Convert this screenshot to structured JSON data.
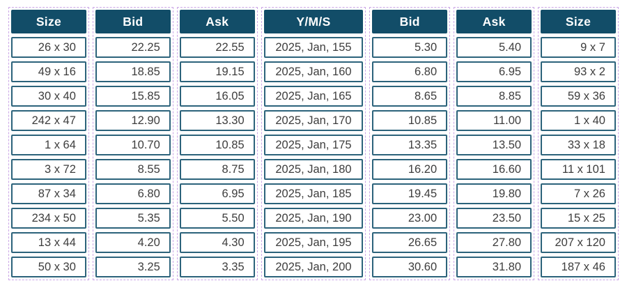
{
  "widget": {
    "name": "options-chain",
    "row_count": 10,
    "columns": [
      {
        "id": "size-left",
        "header": "Size",
        "align": "right",
        "wide": false,
        "values": [
          "26 x 30",
          "49 x 16",
          "30 x 40",
          "242 x 47",
          "1 x 64",
          "3 x 72",
          "87 x 34",
          "234 x 50",
          "13 x 44",
          "50 x 30"
        ]
      },
      {
        "id": "bid-left",
        "header": "Bid",
        "align": "right",
        "wide": false,
        "values": [
          "22.25",
          "18.85",
          "15.85",
          "12.90",
          "10.70",
          "8.55",
          "6.80",
          "5.35",
          "4.20",
          "3.25"
        ]
      },
      {
        "id": "ask-left",
        "header": "Ask",
        "align": "right",
        "wide": false,
        "values": [
          "22.55",
          "19.15",
          "16.05",
          "13.30",
          "10.85",
          "8.75",
          "6.95",
          "5.50",
          "4.30",
          "3.35"
        ]
      },
      {
        "id": "yms",
        "header": "Y/M/S",
        "align": "center",
        "wide": true,
        "values": [
          "2025, Jan, 155",
          "2025, Jan, 160",
          "2025, Jan, 165",
          "2025, Jan, 170",
          "2025, Jan, 175",
          "2025, Jan, 180",
          "2025, Jan, 185",
          "2025, Jan, 190",
          "2025, Jan, 195",
          "2025, Jan, 200"
        ]
      },
      {
        "id": "bid-right",
        "header": "Bid",
        "align": "right",
        "wide": false,
        "values": [
          "5.30",
          "6.80",
          "8.65",
          "10.85",
          "13.35",
          "16.20",
          "19.45",
          "23.00",
          "26.65",
          "30.60"
        ]
      },
      {
        "id": "ask-right",
        "header": "Ask",
        "align": "right",
        "wide": false,
        "values": [
          "5.40",
          "6.95",
          "8.85",
          "11.00",
          "13.50",
          "16.60",
          "19.80",
          "23.50",
          "27.80",
          "31.80"
        ]
      },
      {
        "id": "size-right",
        "header": "Size",
        "align": "right",
        "wide": false,
        "values": [
          "9 x 7",
          "93 x 2",
          "59 x 36",
          "1 x 40",
          "33 x 18",
          "11 x 101",
          "7 x 26",
          "15 x 25",
          "207 x 120",
          "187 x 46"
        ]
      }
    ]
  },
  "colors": {
    "header_bg": "#124d68",
    "header_text": "#ffffff",
    "cell_border": "#2c637b",
    "cell_text": "#3d3d3d",
    "outline": "#cba6e6",
    "background": "#ffffff"
  }
}
